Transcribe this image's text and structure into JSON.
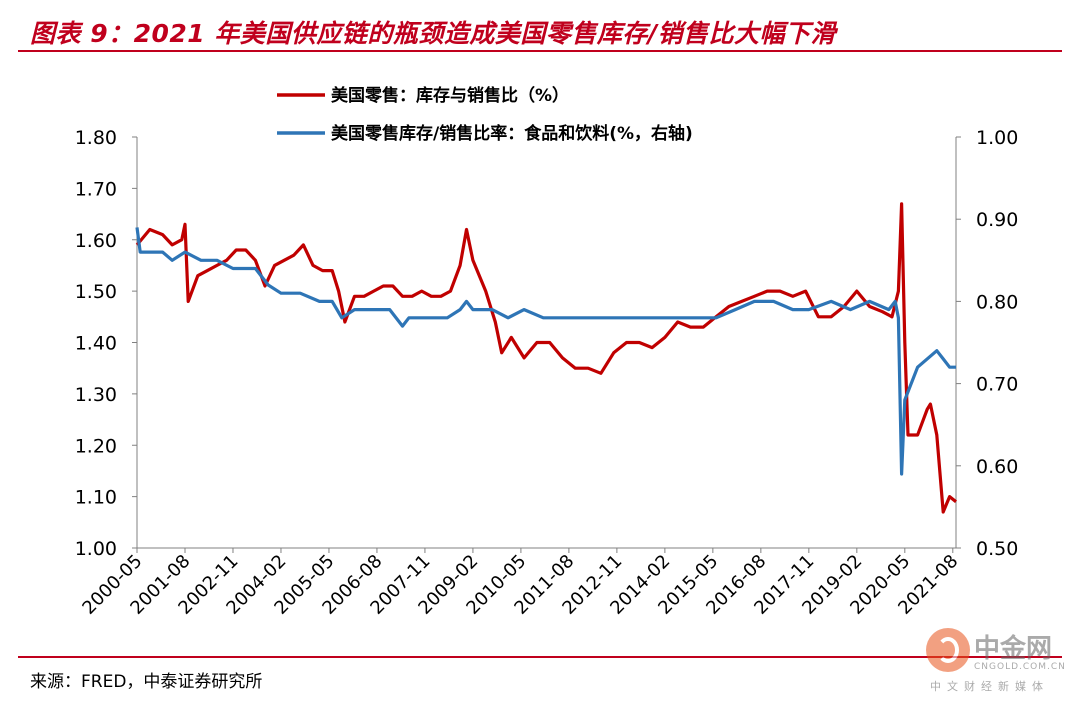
{
  "title": "图表 9：2021 年美国供应链的瓶颈造成美国零售库存/销售比大幅下滑",
  "source": "来源：FRED，中泰证券研究所",
  "watermark": {
    "name": "中金网",
    "url": "CNGOLD.COM.CN",
    "tagline": "中文财经新媒体"
  },
  "colors": {
    "red": "#c00000",
    "blue": "#2e75b6",
    "accent": "#c0001d"
  },
  "chart_data": {
    "type": "line",
    "title": "",
    "left_axis": {
      "range": [
        1.0,
        1.8
      ],
      "ticks": [
        "1.00",
        "1.10",
        "1.20",
        "1.30",
        "1.40",
        "1.50",
        "1.60",
        "1.70",
        "1.80"
      ]
    },
    "right_axis": {
      "range": [
        0.5,
        1.0
      ],
      "ticks": [
        "0.50",
        "0.60",
        "0.70",
        "0.80",
        "0.90",
        "1.00"
      ]
    },
    "x_range": [
      "2000-05",
      "2021-09"
    ],
    "x_ticks": [
      "2000-05",
      "2001-08",
      "2002-11",
      "2004-02",
      "2005-05",
      "2006-08",
      "2007-11",
      "2009-02",
      "2010-05",
      "2011-08",
      "2012-11",
      "2014-02",
      "2015-05",
      "2016-08",
      "2017-11",
      "2019-02",
      "2020-05",
      "2021-08"
    ],
    "grid": false,
    "legend_position": "top",
    "series": [
      {
        "name": "美国零售：库存与销售比（%）",
        "axis": "left",
        "color": "#c00000",
        "points": [
          [
            "2000-05",
            1.59
          ],
          [
            "2000-09",
            1.62
          ],
          [
            "2001-01",
            1.61
          ],
          [
            "2001-04",
            1.59
          ],
          [
            "2001-07",
            1.6
          ],
          [
            "2001-08",
            1.63
          ],
          [
            "2001-09",
            1.48
          ],
          [
            "2001-12",
            1.53
          ],
          [
            "2002-03",
            1.54
          ],
          [
            "2002-06",
            1.55
          ],
          [
            "2002-09",
            1.56
          ],
          [
            "2002-12",
            1.58
          ],
          [
            "2003-03",
            1.58
          ],
          [
            "2003-06",
            1.56
          ],
          [
            "2003-09",
            1.51
          ],
          [
            "2003-12",
            1.55
          ],
          [
            "2004-03",
            1.56
          ],
          [
            "2004-06",
            1.57
          ],
          [
            "2004-09",
            1.59
          ],
          [
            "2004-12",
            1.55
          ],
          [
            "2005-03",
            1.54
          ],
          [
            "2005-06",
            1.54
          ],
          [
            "2005-08",
            1.5
          ],
          [
            "2005-10",
            1.44
          ],
          [
            "2006-01",
            1.49
          ],
          [
            "2006-04",
            1.49
          ],
          [
            "2006-07",
            1.5
          ],
          [
            "2006-10",
            1.51
          ],
          [
            "2007-01",
            1.51
          ],
          [
            "2007-04",
            1.49
          ],
          [
            "2007-07",
            1.49
          ],
          [
            "2007-10",
            1.5
          ],
          [
            "2008-01",
            1.49
          ],
          [
            "2008-04",
            1.49
          ],
          [
            "2008-07",
            1.5
          ],
          [
            "2008-10",
            1.55
          ],
          [
            "2008-12",
            1.62
          ],
          [
            "2009-02",
            1.56
          ],
          [
            "2009-06",
            1.5
          ],
          [
            "2009-09",
            1.44
          ],
          [
            "2009-11",
            1.38
          ],
          [
            "2010-02",
            1.41
          ],
          [
            "2010-06",
            1.37
          ],
          [
            "2010-10",
            1.4
          ],
          [
            "2011-02",
            1.4
          ],
          [
            "2011-06",
            1.37
          ],
          [
            "2011-10",
            1.35
          ],
          [
            "2012-02",
            1.35
          ],
          [
            "2012-06",
            1.34
          ],
          [
            "2012-10",
            1.38
          ],
          [
            "2013-02",
            1.4
          ],
          [
            "2013-06",
            1.4
          ],
          [
            "2013-10",
            1.39
          ],
          [
            "2014-02",
            1.41
          ],
          [
            "2014-06",
            1.44
          ],
          [
            "2014-10",
            1.43
          ],
          [
            "2015-02",
            1.43
          ],
          [
            "2015-06",
            1.45
          ],
          [
            "2015-10",
            1.47
          ],
          [
            "2016-02",
            1.48
          ],
          [
            "2016-06",
            1.49
          ],
          [
            "2016-10",
            1.5
          ],
          [
            "2017-02",
            1.5
          ],
          [
            "2017-06",
            1.49
          ],
          [
            "2017-10",
            1.5
          ],
          [
            "2018-02",
            1.45
          ],
          [
            "2018-06",
            1.45
          ],
          [
            "2018-10",
            1.47
          ],
          [
            "2019-02",
            1.5
          ],
          [
            "2019-06",
            1.47
          ],
          [
            "2019-10",
            1.46
          ],
          [
            "2020-01",
            1.45
          ],
          [
            "2020-03",
            1.5
          ],
          [
            "2020-04",
            1.67
          ],
          [
            "2020-05",
            1.4
          ],
          [
            "2020-06",
            1.22
          ],
          [
            "2020-09",
            1.22
          ],
          [
            "2020-12",
            1.27
          ],
          [
            "2021-01",
            1.28
          ],
          [
            "2021-03",
            1.22
          ],
          [
            "2021-05",
            1.07
          ],
          [
            "2021-07",
            1.1
          ],
          [
            "2021-09",
            1.09
          ]
        ]
      },
      {
        "name": "美国零售库存/销售比率：食品和饮料(%，右轴)",
        "axis": "right",
        "color": "#2e75b6",
        "points": [
          [
            "2000-05",
            0.89
          ],
          [
            "2000-06",
            0.86
          ],
          [
            "2001-01",
            0.86
          ],
          [
            "2001-04",
            0.85
          ],
          [
            "2001-08",
            0.86
          ],
          [
            "2002-01",
            0.85
          ],
          [
            "2002-06",
            0.85
          ],
          [
            "2002-11",
            0.84
          ],
          [
            "2003-06",
            0.84
          ],
          [
            "2003-10",
            0.82
          ],
          [
            "2004-02",
            0.81
          ],
          [
            "2004-08",
            0.81
          ],
          [
            "2005-02",
            0.8
          ],
          [
            "2005-06",
            0.8
          ],
          [
            "2005-09",
            0.78
          ],
          [
            "2006-01",
            0.79
          ],
          [
            "2006-06",
            0.79
          ],
          [
            "2006-12",
            0.79
          ],
          [
            "2007-04",
            0.77
          ],
          [
            "2007-06",
            0.78
          ],
          [
            "2007-11",
            0.78
          ],
          [
            "2008-06",
            0.78
          ],
          [
            "2008-10",
            0.79
          ],
          [
            "2008-12",
            0.8
          ],
          [
            "2009-02",
            0.79
          ],
          [
            "2009-08",
            0.79
          ],
          [
            "2010-01",
            0.78
          ],
          [
            "2010-06",
            0.79
          ],
          [
            "2010-12",
            0.78
          ],
          [
            "2011-08",
            0.78
          ],
          [
            "2012-06",
            0.78
          ],
          [
            "2012-11",
            0.78
          ],
          [
            "2013-06",
            0.78
          ],
          [
            "2014-02",
            0.78
          ],
          [
            "2014-06",
            0.78
          ],
          [
            "2015-01",
            0.78
          ],
          [
            "2015-06",
            0.78
          ],
          [
            "2015-12",
            0.79
          ],
          [
            "2016-06",
            0.8
          ],
          [
            "2016-12",
            0.8
          ],
          [
            "2017-06",
            0.79
          ],
          [
            "2017-11",
            0.79
          ],
          [
            "2018-06",
            0.8
          ],
          [
            "2018-12",
            0.79
          ],
          [
            "2019-06",
            0.8
          ],
          [
            "2019-12",
            0.79
          ],
          [
            "2020-02",
            0.8
          ],
          [
            "2020-03",
            0.78
          ],
          [
            "2020-04",
            0.59
          ],
          [
            "2020-05",
            0.68
          ],
          [
            "2020-07",
            0.7
          ],
          [
            "2020-09",
            0.72
          ],
          [
            "2020-12",
            0.73
          ],
          [
            "2021-03",
            0.74
          ],
          [
            "2021-05",
            0.73
          ],
          [
            "2021-07",
            0.72
          ],
          [
            "2021-09",
            0.72
          ]
        ]
      }
    ]
  }
}
